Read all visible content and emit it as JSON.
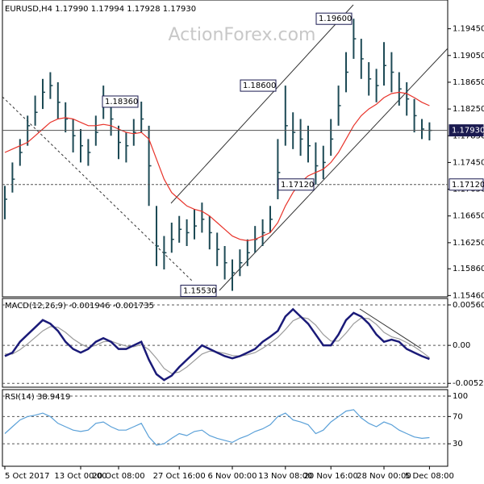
{
  "watermark": "ActionForex.com",
  "chart_data": [
    {
      "type": "ohlc",
      "title": "EURUSD,H4  1.17990 1.17994 1.17928 1.17930",
      "color": "#1d4a55",
      "categories": [
        "5 Oct 2017",
        null,
        null,
        null,
        null,
        null,
        null,
        null,
        null,
        null,
        "13 Oct 00:00",
        null,
        null,
        null,
        null,
        "20 Oct 08:00",
        null,
        null,
        null,
        null,
        null,
        null,
        null,
        "27 Oct 16:00",
        null,
        null,
        null,
        null,
        null,
        null,
        "6 Nov 00:00",
        null,
        null,
        null,
        null,
        null,
        null,
        "13 Nov 08:00",
        null,
        null,
        null,
        null,
        null,
        "20 Nov 16:00",
        null,
        null,
        null,
        null,
        null,
        null,
        "28 Nov 00:00",
        null,
        null,
        null,
        null,
        null,
        "5 Dec 08:00"
      ],
      "high": [
        1.171,
        1.1745,
        1.178,
        1.1815,
        1.1845,
        1.187,
        1.188,
        1.1865,
        1.1835,
        1.181,
        1.1795,
        1.178,
        1.1815,
        1.186,
        1.1835,
        1.18,
        1.179,
        1.181,
        1.1836,
        1.18,
        1.168,
        1.1635,
        1.1655,
        1.1665,
        1.166,
        1.1675,
        1.1685,
        1.1665,
        1.164,
        1.162,
        1.16,
        1.1615,
        1.163,
        1.165,
        1.166,
        1.168,
        1.178,
        1.186,
        1.182,
        1.181,
        1.18,
        1.1775,
        1.177,
        1.181,
        1.186,
        1.191,
        1.196,
        1.193,
        1.1895,
        1.1885,
        1.1925,
        1.191,
        1.188,
        1.1865,
        1.184,
        1.181,
        1.1805
      ],
      "low": [
        1.166,
        1.17,
        1.174,
        1.177,
        1.18,
        1.1825,
        1.184,
        1.181,
        1.179,
        1.176,
        1.1745,
        1.174,
        1.177,
        1.181,
        1.1785,
        1.175,
        1.1745,
        1.177,
        1.179,
        1.168,
        1.159,
        1.1585,
        1.161,
        1.1625,
        1.162,
        1.163,
        1.164,
        1.1615,
        1.159,
        1.157,
        1.1553,
        1.1575,
        1.159,
        1.161,
        1.162,
        1.164,
        1.169,
        1.177,
        1.1765,
        1.1755,
        1.1745,
        1.1712,
        1.172,
        1.1755,
        1.18,
        1.185,
        1.19,
        1.187,
        1.1845,
        1.1835,
        1.186,
        1.185,
        1.183,
        1.1815,
        1.179,
        1.178,
        1.1778
      ],
      "close": [
        1.169,
        1.172,
        1.176,
        1.18,
        1.182,
        1.185,
        1.186,
        1.1835,
        1.181,
        1.1785,
        1.177,
        1.176,
        1.179,
        1.183,
        1.181,
        1.1775,
        1.177,
        1.179,
        1.181,
        1.174,
        1.162,
        1.161,
        1.163,
        1.1645,
        1.164,
        1.165,
        1.166,
        1.164,
        1.1615,
        1.1595,
        1.158,
        1.1595,
        1.161,
        1.163,
        1.164,
        1.166,
        1.173,
        1.18,
        1.179,
        1.178,
        1.177,
        1.174,
        1.1745,
        1.178,
        1.183,
        1.188,
        1.193,
        1.19,
        1.187,
        1.186,
        1.189,
        1.188,
        1.1855,
        1.184,
        1.1815,
        1.1795,
        1.1793
      ],
      "series": [
        {
          "color": "#e8332a",
          "values": [
            1.176,
            1.1765,
            1.177,
            1.1775,
            1.1785,
            1.1795,
            1.1805,
            1.181,
            1.1812,
            1.181,
            1.1805,
            1.18,
            1.18,
            1.1802,
            1.18,
            1.1795,
            1.179,
            1.1788,
            1.179,
            1.178,
            1.175,
            1.172,
            1.17,
            1.169,
            1.168,
            1.1675,
            1.1672,
            1.1665,
            1.1655,
            1.1645,
            1.1635,
            1.163,
            1.1628,
            1.163,
            1.1635,
            1.164,
            1.1655,
            1.168,
            1.17,
            1.1715,
            1.1725,
            1.173,
            1.1735,
            1.1745,
            1.176,
            1.178,
            1.18,
            1.1815,
            1.1825,
            1.1832,
            1.1842,
            1.1848,
            1.185,
            1.1848,
            1.1842,
            1.1835,
            1.183
          ]
        }
      ],
      "ylim": [
        1.1544,
        1.1988
      ],
      "yticks": [
        {
          "value": 1.1945,
          "label": "1.19450"
        },
        {
          "value": 1.1905,
          "label": "1.19050"
        },
        {
          "value": 1.1865,
          "label": "1.18650"
        },
        {
          "value": 1.1825,
          "label": "1.18250"
        },
        {
          "value": 1.1785,
          "label": "1.17850"
        },
        {
          "value": 1.1745,
          "label": "1.17450"
        },
        {
          "value": 1.1705,
          "label": "1.17050"
        },
        {
          "value": 1.1665,
          "label": "1.16650"
        },
        {
          "value": 1.1625,
          "label": "1.16250"
        },
        {
          "value": 1.1586,
          "label": "1.15860"
        },
        {
          "value": 1.1546,
          "label": "1.15460"
        }
      ],
      "hlines": [
        {
          "value": 1.1793,
          "label": "1.17930"
        },
        {
          "value": 1.1712,
          "label": "1.17120"
        }
      ],
      "annotations": [
        {
          "value": 1.1836,
          "label": "1.18360"
        },
        {
          "value": 1.186,
          "label": "1.18600"
        },
        {
          "value": 1.196,
          "label": "1.19600"
        },
        {
          "value": 1.1712,
          "label": "1.17120"
        },
        {
          "value": 1.1553,
          "label": "1.15530"
        }
      ]
    },
    {
      "type": "line",
      "title": "MACD(12,26,9) -0.001946 -0.001735",
      "series": [
        {
          "color": "#1a1a78",
          "values": [
            -0.0015,
            -0.001,
            0.0005,
            0.0015,
            0.0025,
            0.0035,
            0.003,
            0.002,
            0.0005,
            -0.0005,
            -0.001,
            -0.0005,
            0.0005,
            0.001,
            0.0005,
            -0.0005,
            -0.0005,
            0.0,
            0.0005,
            -0.002,
            -0.004,
            -0.0048,
            -0.0042,
            -0.003,
            -0.002,
            -0.001,
            0.0,
            -0.0005,
            -0.001,
            -0.0015,
            -0.0018,
            -0.0015,
            -0.001,
            -0.0005,
            0.0005,
            0.0012,
            0.002,
            0.004,
            0.005,
            0.004,
            0.003,
            0.0015,
            0.0,
            0.0,
            0.0015,
            0.0035,
            0.0045,
            0.004,
            0.003,
            0.0015,
            0.0005,
            0.0008,
            0.0005,
            -0.0005,
            -0.001,
            -0.0015,
            -0.0019
          ]
        },
        {
          "color": "#9a9a9a",
          "values": [
            -0.0012,
            -0.0012,
            -0.0006,
            0.0002,
            0.0011,
            0.002,
            0.0026,
            0.0025,
            0.0018,
            0.0009,
            0.0002,
            -0.0003,
            0.0,
            0.0005,
            0.0006,
            0.0002,
            -0.0001,
            -0.0002,
            0.0001,
            -0.0006,
            -0.0018,
            -0.0032,
            -0.0039,
            -0.0037,
            -0.003,
            -0.0021,
            -0.0012,
            -0.0008,
            -0.0009,
            -0.0011,
            -0.0014,
            -0.0015,
            -0.0013,
            -0.001,
            -0.0004,
            0.0003,
            0.0011,
            0.0022,
            0.0034,
            0.0039,
            0.0037,
            0.0028,
            0.0015,
            0.0006,
            0.0006,
            0.0017,
            0.003,
            0.0038,
            0.0037,
            0.0029,
            0.0018,
            0.0012,
            0.0009,
            0.0004,
            -0.0002,
            -0.0009,
            -0.0017
          ]
        }
      ],
      "ylim": [
        -0.0058,
        0.0065
      ],
      "yticks": [
        0.005607,
        {
          "value": 0,
          "label": "0.00"
        },
        -0.005267
      ]
    },
    {
      "type": "line",
      "title": "RSI(14) 38.9419",
      "series": [
        {
          "color": "#5aa0d8",
          "values": [
            45,
            55,
            65,
            70,
            72,
            75,
            70,
            60,
            55,
            50,
            48,
            50,
            60,
            62,
            55,
            50,
            50,
            55,
            60,
            40,
            28,
            30,
            38,
            45,
            42,
            48,
            50,
            42,
            38,
            35,
            32,
            38,
            42,
            48,
            52,
            58,
            70,
            75,
            65,
            62,
            58,
            45,
            50,
            62,
            70,
            78,
            80,
            68,
            60,
            55,
            62,
            58,
            50,
            45,
            40,
            38,
            39
          ]
        }
      ],
      "ylim": [
        -3,
        109.5
      ],
      "yticks": [
        100,
        70,
        30
      ]
    }
  ]
}
